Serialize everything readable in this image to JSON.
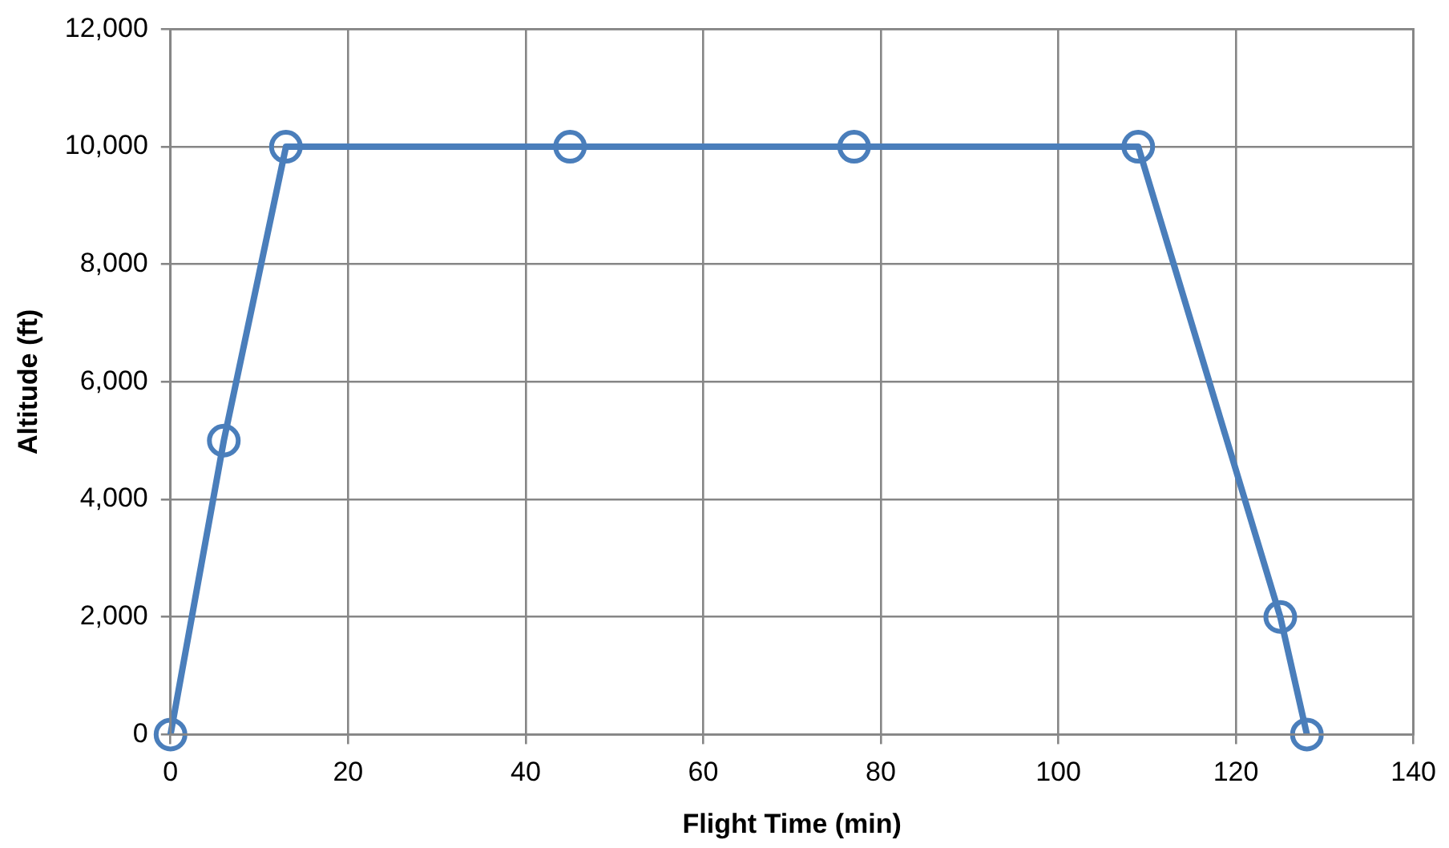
{
  "chart_data": {
    "type": "line",
    "xlabel": "Flight Time (min)",
    "ylabel": "Altitude (ft)",
    "x": [
      0,
      6,
      13,
      45,
      77,
      109,
      125,
      128
    ],
    "series": [
      {
        "color": "#4a7ebb",
        "values": [
          0,
          5000,
          10000,
          10000,
          10000,
          10000,
          2000,
          0
        ]
      }
    ],
    "xlim": [
      0,
      140
    ],
    "xticks": [
      0,
      20,
      40,
      60,
      80,
      100,
      120,
      140
    ],
    "ylim": [
      0,
      12000
    ],
    "yticks": [
      0,
      {
        "value": 2000,
        "label": "2,000"
      },
      {
        "value": 4000,
        "label": "4,000"
      },
      {
        "value": 6000,
        "label": "6,000"
      },
      {
        "value": 8000,
        "label": "8,000"
      },
      {
        "value": 10000,
        "label": "10,000"
      },
      {
        "value": 12000,
        "label": "12,000"
      }
    ],
    "grid": true,
    "legend": false,
    "marker": "circle",
    "line_style": "solid"
  }
}
